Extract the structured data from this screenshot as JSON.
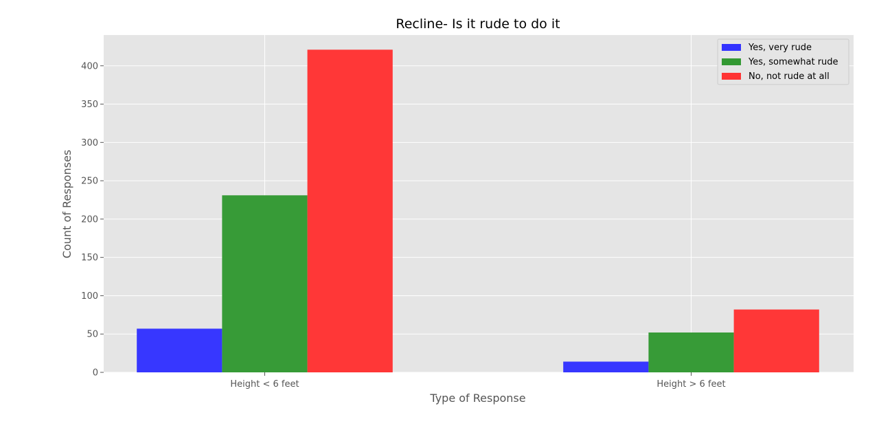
{
  "chart_data": {
    "type": "bar",
    "title": "Recline- Is it rude to do it",
    "xlabel": "Type of Response",
    "ylabel": "Count of Responses",
    "categories": [
      "Height < 6 feet",
      "Height > 6 feet"
    ],
    "series": [
      {
        "name": "Yes, very rude",
        "values": [
          57,
          14
        ],
        "color": "#3333ff"
      },
      {
        "name": "Yes, somewhat rude",
        "values": [
          231,
          52
        ],
        "color": "#339933"
      },
      {
        "name": "No, not rude at all",
        "values": [
          421,
          82
        ],
        "color": "#ff3333"
      }
    ],
    "ylim": [
      0,
      440
    ],
    "yticks": [
      0,
      50,
      100,
      150,
      200,
      250,
      300,
      350,
      400
    ],
    "grid": true,
    "legend_position": "top-right",
    "background": "#e5e5e5"
  }
}
